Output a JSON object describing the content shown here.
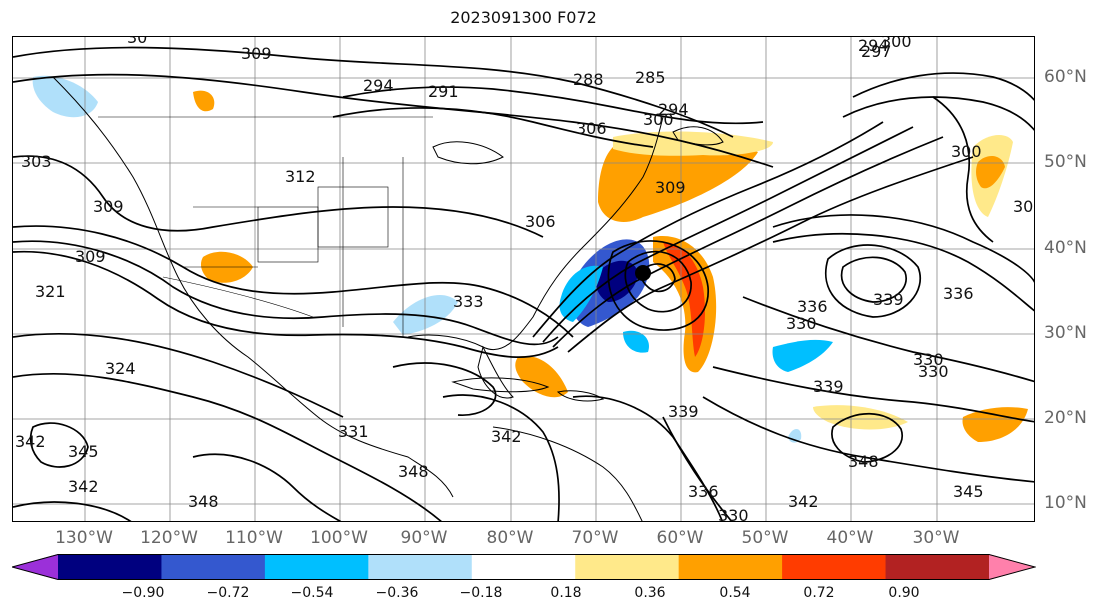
{
  "title": "2023091300 F072",
  "lon_labels": [
    "130°W",
    "120°W",
    "110°W",
    "100°W",
    "90°W",
    "80°W",
    "70°W",
    "60°W",
    "50°W",
    "40°W",
    "30°W"
  ],
  "lat_labels": [
    "60°N",
    "50°N",
    "40°N",
    "30°N",
    "20°N",
    "10°N"
  ],
  "colorbar": {
    "ticks": [
      "−0.90",
      "−0.72",
      "−0.54",
      "−0.36",
      "−0.18",
      "0.18",
      "0.36",
      "0.54",
      "0.72",
      "0.90"
    ],
    "colors": [
      "#9b30d9",
      "#00007f",
      "#3458cf",
      "#00bfff",
      "#b0e0fa",
      "#ffffff",
      "#ffe98a",
      "#ffa000",
      "#ff3c00",
      "#b22222",
      "#ff80ab"
    ]
  },
  "contour_labels": [
    "30",
    "309",
    "294",
    "291",
    "288",
    "285",
    "297",
    "294",
    "300",
    "306",
    "303",
    "312",
    "309",
    "309",
    "321",
    "309",
    "306",
    "300",
    "336",
    "339",
    "333",
    "330",
    "330",
    "336",
    "324",
    "330",
    "339",
    "342",
    "345",
    "342",
    "348",
    "348",
    "342",
    "345",
    "339",
    "336",
    "330",
    "342",
    "348",
    "331",
    "30",
    "300",
    "294"
  ]
}
